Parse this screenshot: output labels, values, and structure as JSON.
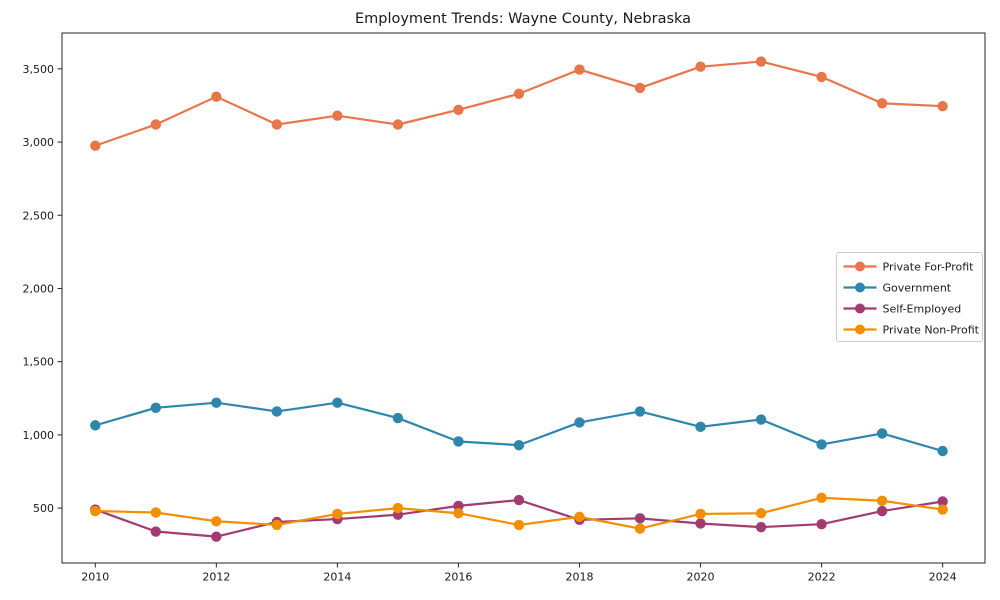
{
  "figure": {
    "background": "#ffffff",
    "axis_color": "#262626",
    "tick_label_color": "#1a1a1a",
    "legend_border_color": "#cccccc",
    "legend_background": "#ffffff"
  },
  "chart_data": {
    "type": "line",
    "title": "Employment Trends: Wayne County, Nebraska",
    "xlabel": "",
    "ylabel": "",
    "grid": false,
    "legend_position": "right",
    "x": [
      2010,
      2011,
      2012,
      2013,
      2014,
      2015,
      2016,
      2017,
      2018,
      2019,
      2020,
      2021,
      2022,
      2023,
      2024
    ],
    "series": [
      {
        "name": "Private For-Profit",
        "color": "#e8764a",
        "values": [
          2975,
          3120,
          3310,
          3120,
          3180,
          3120,
          3220,
          3330,
          3495,
          3370,
          3515,
          3550,
          3445,
          3265,
          3245
        ]
      },
      {
        "name": "Government",
        "color": "#2e86ab",
        "values": [
          1065,
          1185,
          1220,
          1160,
          1220,
          1115,
          955,
          930,
          1085,
          1160,
          1055,
          1105,
          935,
          1010,
          890
        ]
      },
      {
        "name": "Self-Employed",
        "color": "#a23b72",
        "values": [
          490,
          340,
          305,
          405,
          425,
          455,
          515,
          555,
          420,
          430,
          395,
          370,
          390,
          480,
          545
        ]
      },
      {
        "name": "Private Non-Profit",
        "color": "#f18f01",
        "values": [
          480,
          470,
          410,
          385,
          460,
          500,
          465,
          385,
          440,
          360,
          460,
          465,
          570,
          550,
          490
        ]
      }
    ],
    "x_ticks": [
      2010,
      2012,
      2014,
      2016,
      2018,
      2020,
      2022,
      2024
    ],
    "y_ticks": [
      500,
      1000,
      1500,
      2000,
      2500,
      3000,
      3500
    ],
    "y_tick_labels": [
      "500",
      "1,000",
      "1,500",
      "2,000",
      "2,500",
      "3,000",
      "3,500"
    ],
    "xlim": [
      2009.45,
      2024.7
    ],
    "ylim": [
      125,
      3745
    ]
  }
}
